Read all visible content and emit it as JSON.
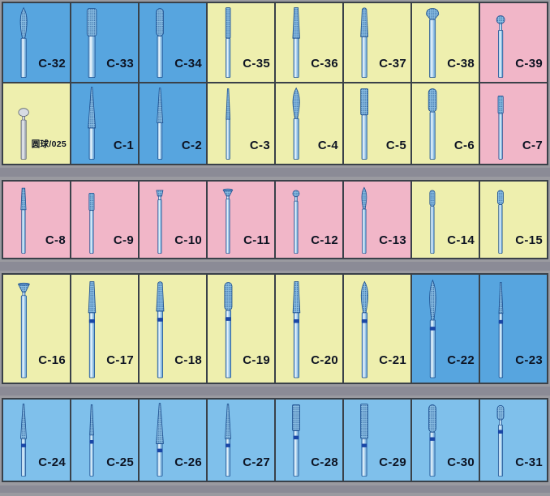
{
  "palette": {
    "blue": "#57a5df",
    "yellow": "#eeefae",
    "pink": "#f1b6c8",
    "lightblue": "#7fc0eb",
    "board_bg": "#9a9aa0",
    "divider": "#8b8b96",
    "border": "#3a4149",
    "label_color": "#0d1322",
    "bur_outline": "#1d4f8f",
    "bur_band": "#1a47a6",
    "bur_grit": "#8abde2",
    "bur_grit_dot": "#2d639f"
  },
  "grid": {
    "sections": [
      {
        "name": "top-block",
        "rows": [
          {
            "cells": [
              {
                "label": "C-32",
                "bg": "blue",
                "shape": "flame"
              },
              {
                "label": "C-33",
                "bg": "blue",
                "shape": "barrel"
              },
              {
                "label": "C-34",
                "bg": "blue",
                "shape": "cyl-round"
              },
              {
                "label": "C-35",
                "bg": "yellow",
                "shape": "fissure"
              },
              {
                "label": "C-36",
                "bg": "yellow",
                "shape": "taper"
              },
              {
                "label": "C-37",
                "bg": "yellow",
                "shape": "taper-round"
              },
              {
                "label": "C-38",
                "bg": "yellow",
                "shape": "dome"
              },
              {
                "label": "C-39",
                "bg": "pink",
                "shape": "ball-neck"
              }
            ]
          },
          {
            "cells": [
              {
                "label": "圆球/025",
                "bg": "yellow",
                "shape": "round-ball",
                "metal": "silver",
                "small_label": true
              },
              {
                "label": "C-1",
                "bg": "blue",
                "shape": "needle-long"
              },
              {
                "label": "C-2",
                "bg": "blue",
                "shape": "needle"
              },
              {
                "label": "C-3",
                "bg": "yellow",
                "shape": "needle-thin"
              },
              {
                "label": "C-4",
                "bg": "yellow",
                "shape": "flame"
              },
              {
                "label": "C-5",
                "bg": "yellow",
                "shape": "cylinder"
              },
              {
                "label": "C-6",
                "bg": "yellow",
                "shape": "bud"
              },
              {
                "label": "C-7",
                "bg": "pink",
                "shape": "cyl-small"
              }
            ]
          }
        ]
      },
      {
        "name": "row-3",
        "rows": [
          {
            "cells": [
              {
                "label": "C-8",
                "bg": "pink",
                "shape": "taper-small"
              },
              {
                "label": "C-9",
                "bg": "pink",
                "shape": "cyl-small"
              },
              {
                "label": "C-10",
                "bg": "pink",
                "shape": "invcone"
              },
              {
                "label": "C-11",
                "bg": "pink",
                "shape": "umbrella"
              },
              {
                "label": "C-12",
                "bg": "pink",
                "shape": "ball"
              },
              {
                "label": "C-13",
                "bg": "pink",
                "shape": "flame-small"
              },
              {
                "label": "C-14",
                "bg": "yellow",
                "shape": "cyl-round-small"
              },
              {
                "label": "C-15",
                "bg": "yellow",
                "shape": "bud-small"
              }
            ]
          }
        ]
      },
      {
        "name": "row-4",
        "rows": [
          {
            "cells": [
              {
                "label": "C-16",
                "bg": "yellow",
                "shape": "umbrella-long"
              },
              {
                "label": "C-17",
                "bg": "yellow",
                "shape": "taper",
                "band": true
              },
              {
                "label": "C-18",
                "bg": "yellow",
                "shape": "taper-round",
                "band": true
              },
              {
                "label": "C-19",
                "bg": "yellow",
                "shape": "cyl-round",
                "band": true
              },
              {
                "label": "C-20",
                "bg": "yellow",
                "shape": "taper",
                "band": true
              },
              {
                "label": "C-21",
                "bg": "yellow",
                "shape": "flame",
                "band": true
              },
              {
                "label": "C-22",
                "bg": "blue",
                "shape": "flame-long",
                "band": true
              },
              {
                "label": "C-23",
                "bg": "blue",
                "shape": "needle-thin",
                "band": true
              }
            ]
          }
        ]
      },
      {
        "name": "row-5",
        "rows": [
          {
            "cells": [
              {
                "label": "C-24",
                "bg": "lightblue",
                "shape": "needle",
                "band": true
              },
              {
                "label": "C-25",
                "bg": "lightblue",
                "shape": "needle-thin",
                "band": true
              },
              {
                "label": "C-26",
                "bg": "lightblue",
                "shape": "needle-long",
                "band": true
              },
              {
                "label": "C-27",
                "bg": "lightblue",
                "shape": "needle",
                "band": true
              },
              {
                "label": "C-28",
                "bg": "lightblue",
                "shape": "cylinder",
                "band": true
              },
              {
                "label": "C-29",
                "bg": "lightblue",
                "shape": "cylinder-long",
                "band": true
              },
              {
                "label": "C-30",
                "bg": "lightblue",
                "shape": "cyl-round",
                "band": true
              },
              {
                "label": "C-31",
                "bg": "lightblue",
                "shape": "bud-neck",
                "band": true
              }
            ]
          }
        ]
      }
    ]
  }
}
